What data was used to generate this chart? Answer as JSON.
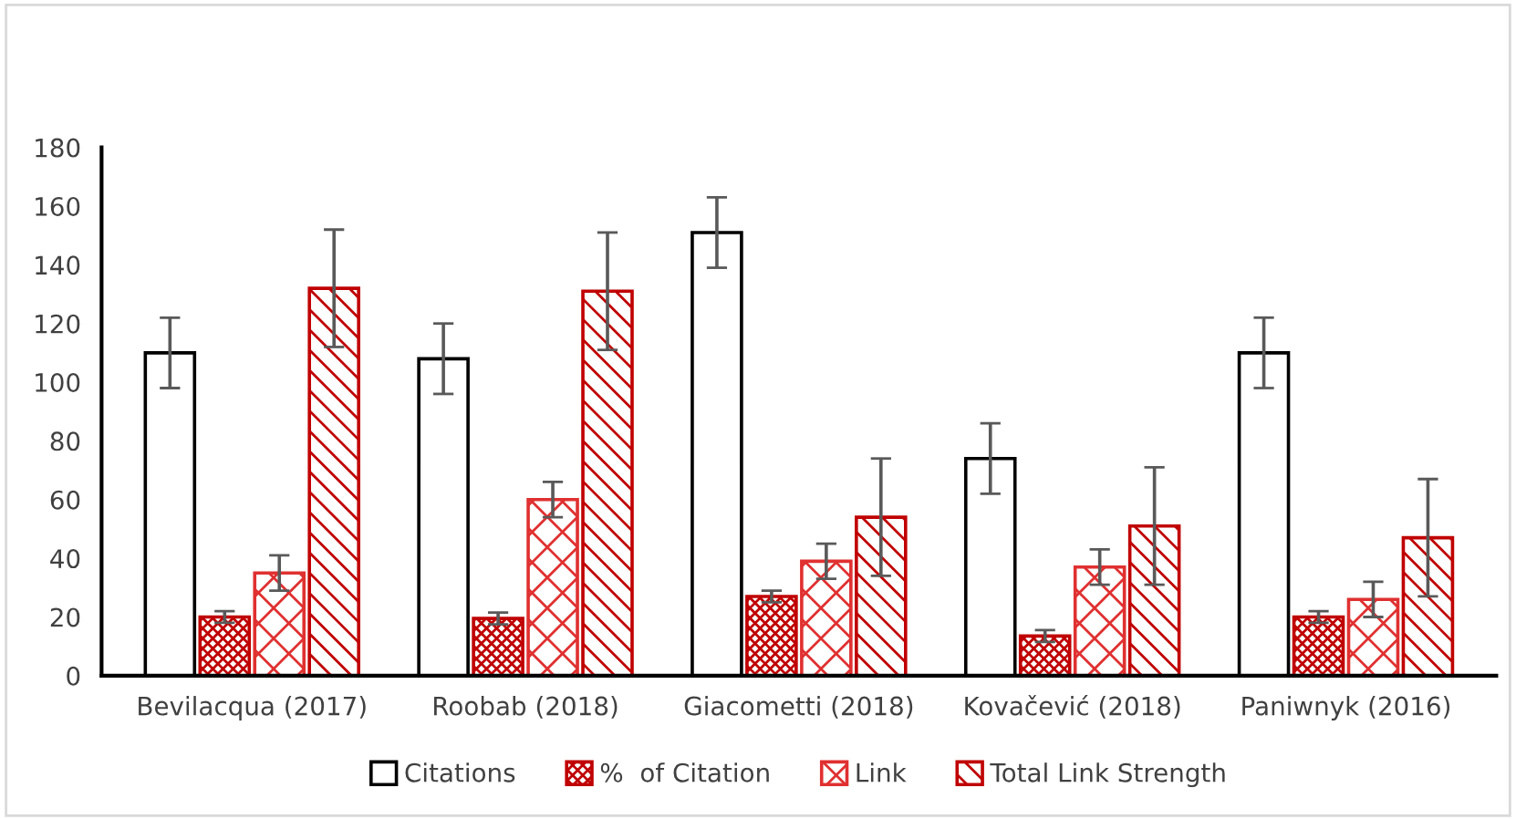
{
  "chart_data": {
    "type": "bar",
    "categories": [
      "Bevilacqua (2017)",
      "Roobab (2018)",
      "Giacometti (2018)",
      "Kovačević (2018)",
      "Paniwnyk (2016)"
    ],
    "series": [
      {
        "name": "Citations",
        "color": "#000000",
        "values": [
          110,
          108,
          151,
          74,
          110
        ],
        "errors": [
          12,
          12,
          12,
          12,
          12
        ]
      },
      {
        "name": "%  of Citation",
        "color": "#c00000",
        "values": [
          20,
          19.5,
          27,
          13.5,
          20
        ],
        "errors": [
          2,
          2,
          2,
          2,
          2
        ]
      },
      {
        "name": "Link",
        "color": "#e03030",
        "values": [
          35,
          60,
          39,
          37,
          26
        ],
        "errors": [
          6,
          6,
          6,
          6,
          6
        ]
      },
      {
        "name": "Total Link Strength",
        "color": "#c00000",
        "values": [
          132,
          131,
          54,
          51,
          47
        ],
        "errors": [
          20,
          20,
          20,
          20,
          20
        ]
      }
    ],
    "ylim": [
      0,
      180
    ],
    "yticks": [
      0,
      20,
      40,
      60,
      80,
      100,
      120,
      140,
      160,
      180
    ],
    "grid": false,
    "legend": "bottom"
  }
}
